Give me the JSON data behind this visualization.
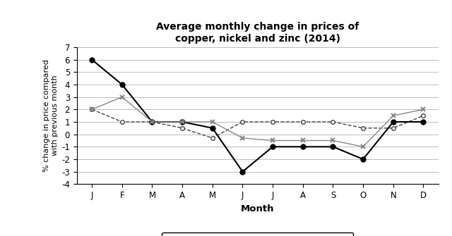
{
  "title_line1": "Average monthly change in prices of",
  "title_line2": "copper, nickel and zinc (2014)",
  "xlabel": "Month",
  "ylabel": "% change in price compared\nwith previous month",
  "months": [
    "J",
    "F",
    "M",
    "A",
    "M",
    "J",
    "J",
    "A",
    "S",
    "O",
    "N",
    "D"
  ],
  "copper": [
    2.0,
    1.0,
    1.0,
    0.5,
    -0.3,
    1.0,
    1.0,
    1.0,
    1.0,
    0.5,
    0.5,
    1.5
  ],
  "nickel": [
    6.0,
    4.0,
    1.0,
    1.0,
    0.5,
    -3.0,
    -1.0,
    -1.0,
    -1.0,
    -2.0,
    1.0,
    1.0
  ],
  "zinc": [
    2.0,
    3.0,
    1.0,
    1.0,
    1.0,
    -0.3,
    -0.5,
    -0.5,
    -0.5,
    -1.0,
    1.5,
    2.0
  ],
  "ylim": [
    -4,
    7
  ],
  "yticks": [
    -4,
    -3,
    -2,
    -1,
    0,
    1,
    2,
    3,
    4,
    5,
    6,
    7
  ],
  "copper_color": "#444444",
  "nickel_color": "#000000",
  "zinc_color": "#888888",
  "background_color": "#ffffff",
  "grid_color": "#bbbbbb"
}
